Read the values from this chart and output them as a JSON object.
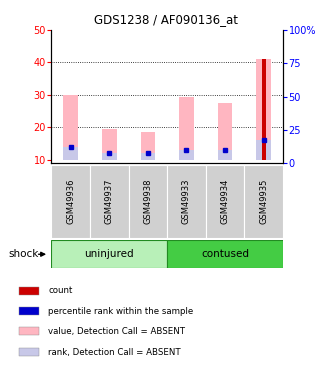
{
  "title": "GDS1238 / AF090136_at",
  "samples": [
    "GSM49936",
    "GSM49937",
    "GSM49938",
    "GSM49933",
    "GSM49934",
    "GSM49935"
  ],
  "ylim_left": [
    9,
    50
  ],
  "ylim_right": [
    0,
    100
  ],
  "yticks_left": [
    10,
    20,
    30,
    40,
    50
  ],
  "yticks_right": [
    0,
    25,
    50,
    75,
    100
  ],
  "yticklabels_right": [
    "0",
    "25",
    "50",
    "75",
    "100%"
  ],
  "pink_bar_tops": [
    30,
    19.5,
    18.5,
    29.5,
    27.5,
    41
  ],
  "pink_bar_bottoms": [
    10,
    10,
    10,
    10,
    10,
    10
  ],
  "lavender_bar_tops": [
    14,
    12,
    12,
    13,
    13,
    16
  ],
  "lavender_bar_bottoms": [
    10,
    10,
    10,
    10,
    10,
    10
  ],
  "red_bar_values": [
    0,
    0,
    0,
    0,
    0,
    41
  ],
  "red_bar_bottom": 10,
  "blue_marker_values": [
    14,
    12,
    12,
    13,
    13,
    16
  ],
  "color_pink": "#ffb6c1",
  "color_lavender": "#c8c8e8",
  "color_red": "#cc0000",
  "color_blue": "#0000cc",
  "bar_bg": "#d0d0d0",
  "uninjured_color": "#b8f0b8",
  "contused_color": "#44cc44",
  "group_border": "#228B22",
  "legend_items": [
    {
      "label": "count",
      "color": "#cc0000"
    },
    {
      "label": "percentile rank within the sample",
      "color": "#0000cc"
    },
    {
      "label": "value, Detection Call = ABSENT",
      "color": "#ffb6c1"
    },
    {
      "label": "rank, Detection Call = ABSENT",
      "color": "#c8c8e8"
    }
  ]
}
